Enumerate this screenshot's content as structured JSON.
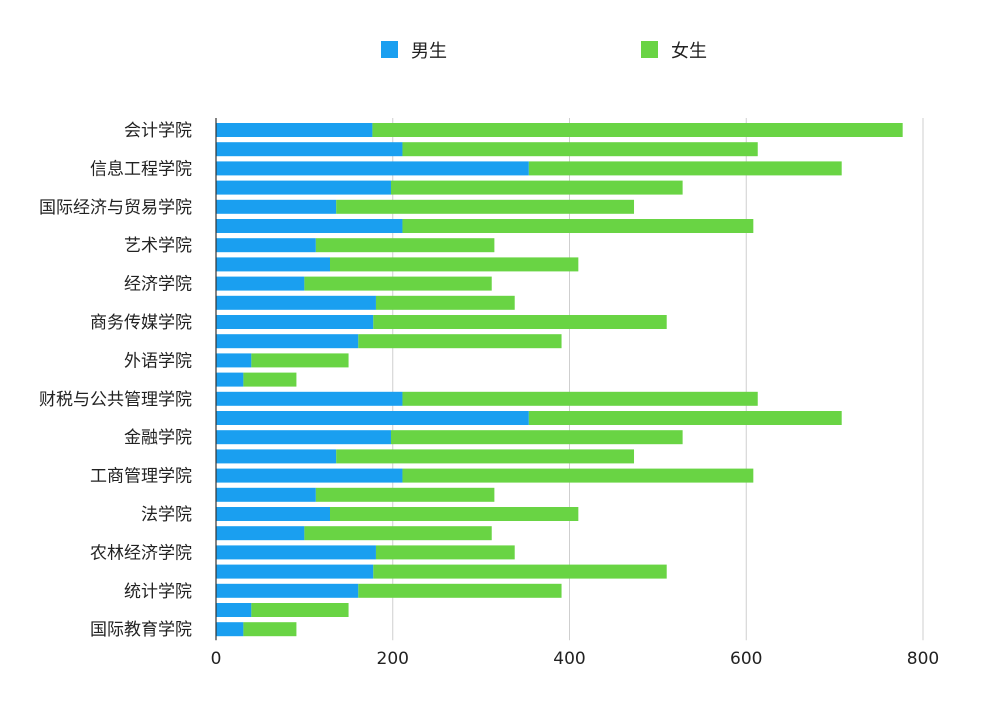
{
  "chart_data": {
    "type": "bar",
    "orientation": "horizontal",
    "stacked": true,
    "legend_position": "top",
    "grid": true,
    "xlim": [
      0,
      800
    ],
    "xticks": [
      0,
      200,
      400,
      600,
      800
    ],
    "categories": [
      "会计学院",
      "",
      "信息工程学院",
      "",
      "国际经济与贸易学院",
      "",
      "艺术学院",
      "",
      "经济学院",
      "",
      "商务传媒学院",
      "",
      "外语学院",
      "",
      "财税与公共管理学院",
      "",
      "金融学院",
      "",
      "工商管理学院",
      "",
      "法学院",
      "",
      "农林经济学院",
      "",
      "统计学院",
      "",
      "国际教育学院"
    ],
    "series": [
      {
        "name": "男生",
        "color": "#1a9ff0",
        "values": [
          177,
          211,
          354,
          198,
          136,
          211,
          113,
          129,
          100,
          181,
          178,
          161,
          40,
          31,
          211,
          354,
          198,
          136,
          211,
          113,
          129,
          100,
          181,
          178,
          161,
          40,
          31
        ]
      },
      {
        "name": "女生",
        "color": "#69d444",
        "values": [
          600,
          402,
          354,
          330,
          337,
          397,
          202,
          281,
          212,
          157,
          332,
          230,
          110,
          60,
          402,
          354,
          330,
          337,
          397,
          202,
          281,
          212,
          157,
          332,
          230,
          110,
          60
        ]
      }
    ]
  }
}
